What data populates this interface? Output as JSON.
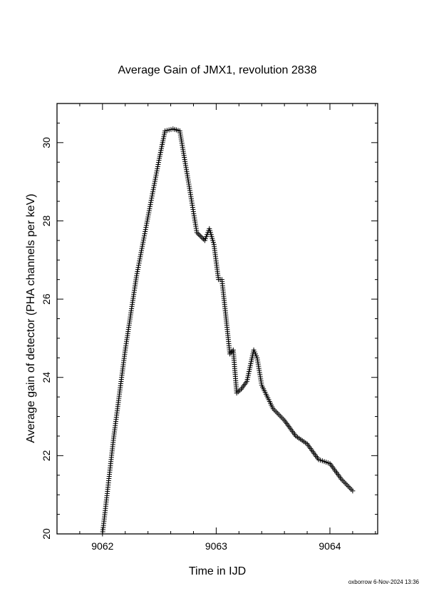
{
  "footer": "oxborrow 6-Nov-2024 13:36",
  "chart_data": {
    "type": "scatter",
    "title": "Average Gain of JMX1, revolution 2838",
    "xlabel": "Time in IJD",
    "ylabel": "Average gain of detector (PHA channels per keV)",
    "xlim": [
      9061.6,
      9064.42
    ],
    "ylim": [
      20,
      31
    ],
    "xticks": [
      9062,
      9063,
      9064
    ],
    "xtick_labels": [
      "9062",
      "9063",
      "9064"
    ],
    "yticks": [
      20,
      22,
      24,
      26,
      28,
      30
    ],
    "ytick_labels": [
      "20",
      "22",
      "24",
      "26",
      "28",
      "30"
    ],
    "marker": "plus",
    "color": "#000000",
    "grid": false,
    "legend": "none",
    "series": [
      {
        "points": [
          [
            9062.0,
            20.0
          ],
          [
            9062.1,
            22.5
          ],
          [
            9062.2,
            24.7
          ],
          [
            9062.3,
            26.6
          ],
          [
            9062.4,
            28.1
          ],
          [
            9062.5,
            29.6
          ],
          [
            9062.55,
            30.3
          ],
          [
            9062.62,
            30.35
          ],
          [
            9062.68,
            30.3
          ],
          [
            9062.75,
            29.1
          ],
          [
            9062.83,
            27.7
          ],
          [
            9062.9,
            27.5
          ],
          [
            9062.94,
            27.8
          ],
          [
            9062.98,
            27.4
          ],
          [
            9063.02,
            26.5
          ],
          [
            9063.05,
            26.5
          ],
          [
            9063.08,
            25.7
          ],
          [
            9063.12,
            24.6
          ],
          [
            9063.15,
            24.7
          ],
          [
            9063.18,
            23.6
          ],
          [
            9063.22,
            23.7
          ],
          [
            9063.27,
            23.9
          ],
          [
            9063.3,
            24.3
          ],
          [
            9063.33,
            24.7
          ],
          [
            9063.36,
            24.5
          ],
          [
            9063.4,
            23.8
          ],
          [
            9063.5,
            23.2
          ],
          [
            9063.6,
            22.9
          ],
          [
            9063.7,
            22.5
          ],
          [
            9063.8,
            22.3
          ],
          [
            9063.9,
            21.9
          ],
          [
            9064.0,
            21.8
          ],
          [
            9064.1,
            21.4
          ],
          [
            9064.2,
            21.1
          ]
        ]
      }
    ]
  }
}
